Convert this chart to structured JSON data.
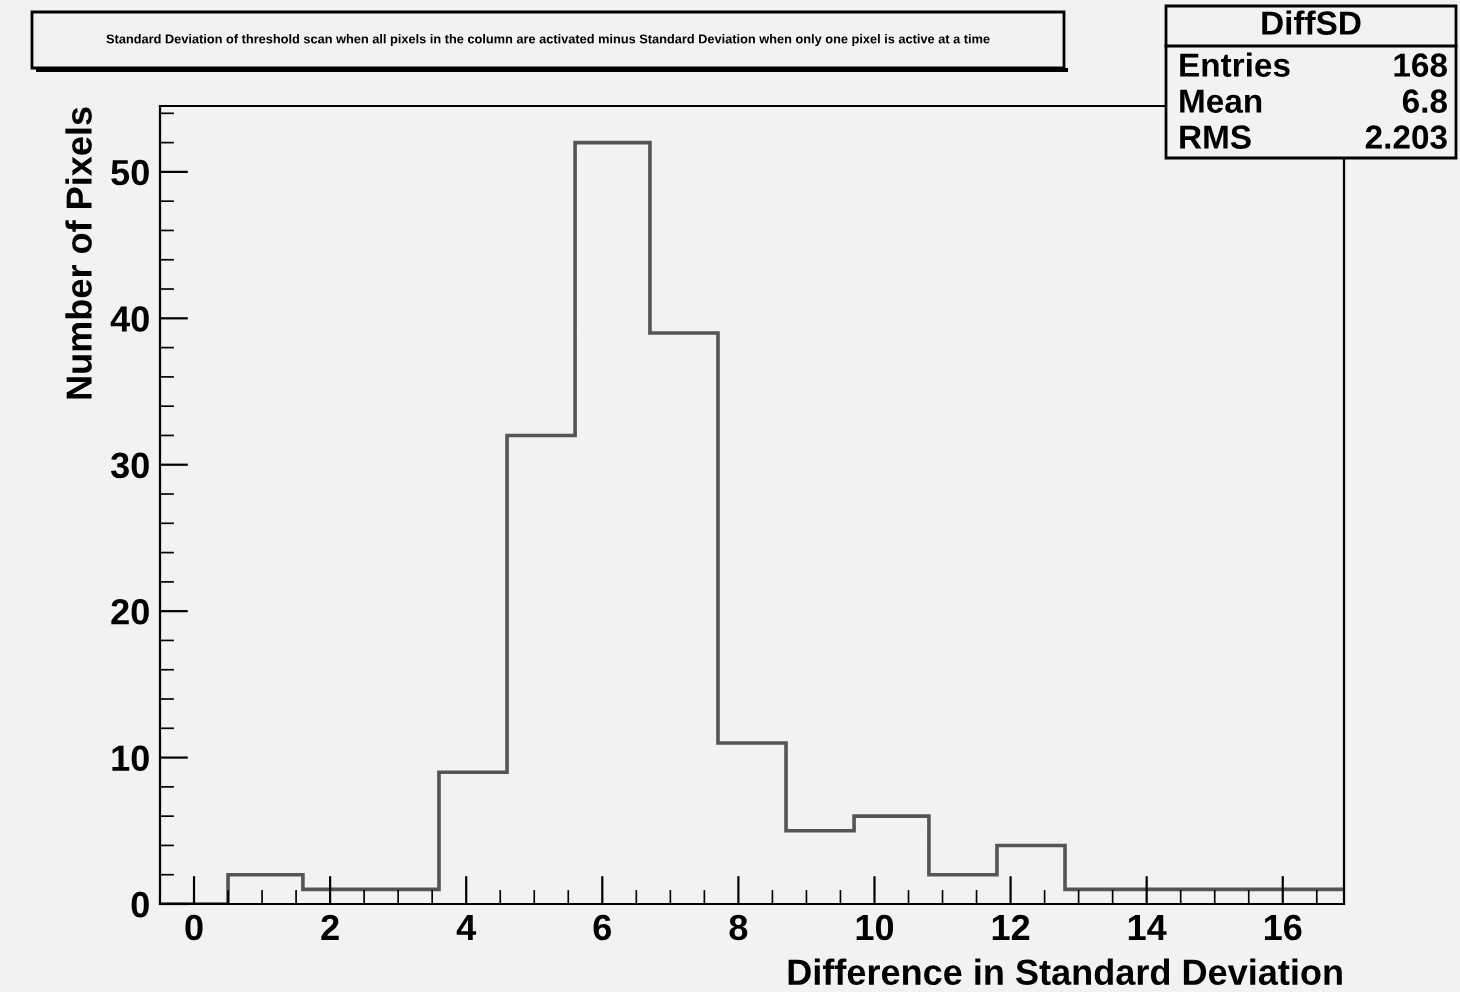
{
  "chart_data": {
    "type": "histogram",
    "title": "Standard Deviation of threshold scan when all pixels in the column are activated minus Standard Deviation when only one pixel is active at a time",
    "xlabel": "Difference in Standard Deviation",
    "ylabel": "Number of Pixels",
    "bins": [
      -0.5,
      0.5,
      1.6,
      2.6,
      3.6,
      4.6,
      5.6,
      6.7,
      7.7,
      8.7,
      9.7,
      10.8,
      11.8,
      12.8,
      13.8,
      14.9,
      15.9,
      16.9
    ],
    "values": [
      0,
      2,
      1,
      1,
      9,
      32,
      52,
      39,
      11,
      5,
      6,
      2,
      4,
      1,
      1,
      1,
      1
    ],
    "color": "#555555",
    "xlim": [
      -0.5,
      16.9
    ],
    "xticks": [
      0,
      2,
      4,
      6,
      8,
      10,
      12,
      14,
      16
    ],
    "ylim": [
      0,
      54.5
    ],
    "yticks": [
      0,
      10,
      20,
      30,
      40,
      50
    ],
    "grid": false,
    "legend": false,
    "annotations": [
      "DiffSD",
      "Entries",
      "168",
      "Mean",
      "6.8",
      "RMS",
      "2.203"
    ]
  }
}
